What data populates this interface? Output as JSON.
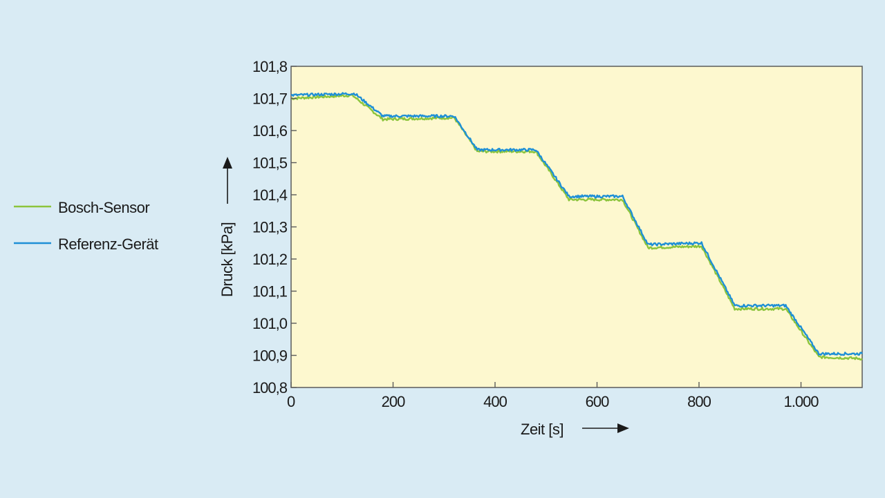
{
  "chart_data": {
    "type": "line",
    "xlabel": "Zeit [s]",
    "ylabel": "Druck [kPa]",
    "xlim": [
      0,
      1120
    ],
    "ylim": [
      100.8,
      101.8
    ],
    "x_ticks": [
      0,
      200,
      400,
      600,
      800,
      1000
    ],
    "x_tick_labels": [
      "0",
      "200",
      "400",
      "600",
      "800",
      "1.000"
    ],
    "y_ticks": [
      100.8,
      100.9,
      101.0,
      101.1,
      101.2,
      101.3,
      101.4,
      101.5,
      101.6,
      101.7,
      101.8
    ],
    "y_tick_labels": [
      "100,8",
      "100,9",
      "101,0",
      "101,1",
      "101,2",
      "101,3",
      "101,4",
      "101,5",
      "101,6",
      "101,7",
      "101,8"
    ],
    "grid": false,
    "legend_position": "left",
    "plot_background": "#fdf8cf",
    "page_background": "#d9ebf4",
    "series": [
      {
        "name": "Bosch-Sensor",
        "color": "#8cc43c",
        "x": [
          0,
          120,
          180,
          320,
          365,
          480,
          545,
          650,
          700,
          805,
          870,
          970,
          1035,
          1120
        ],
        "y": [
          101.7,
          101.71,
          101.635,
          101.64,
          101.535,
          101.535,
          101.385,
          101.385,
          101.235,
          101.24,
          101.045,
          101.045,
          100.895,
          100.89
        ]
      },
      {
        "name": "Referenz-Gerät",
        "color": "#1e8fd6",
        "x": [
          0,
          125,
          180,
          320,
          365,
          480,
          545,
          650,
          700,
          805,
          870,
          970,
          1035,
          1120
        ],
        "y": [
          101.71,
          101.715,
          101.645,
          101.645,
          101.54,
          101.54,
          101.395,
          101.395,
          101.245,
          101.25,
          101.055,
          101.055,
          100.905,
          100.905
        ]
      }
    ]
  }
}
